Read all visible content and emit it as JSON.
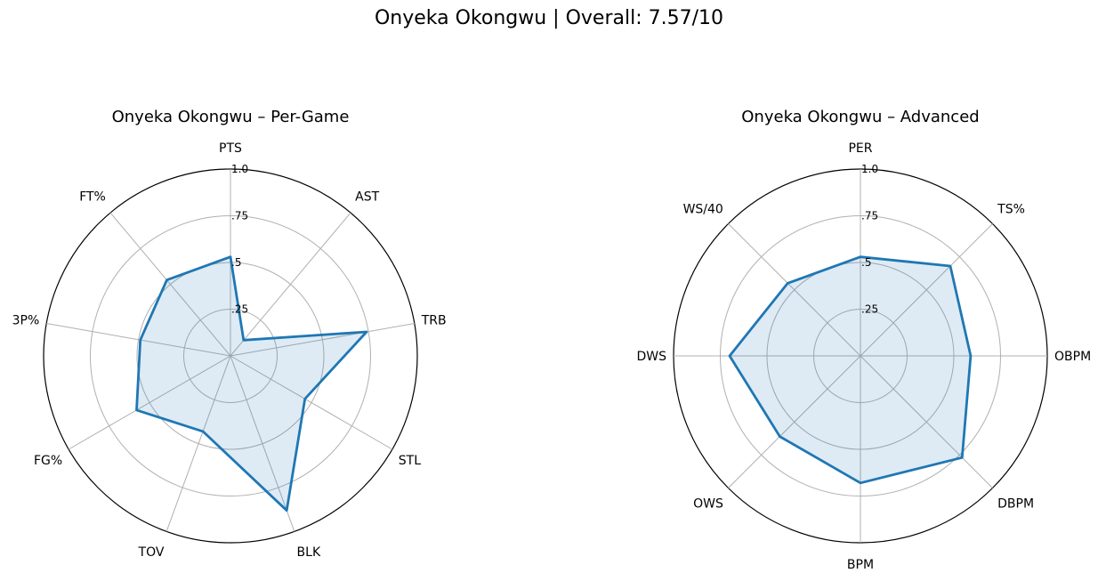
{
  "suptitle": "Onyeka Okongwu | Overall: 7.57/10",
  "chart_data": [
    {
      "type": "radar",
      "title": "Onyeka Okongwu – Per-Game",
      "categories": [
        "PTS",
        "AST",
        "TRB",
        "STL",
        "BLK",
        "TOV",
        "FG%",
        "3P%",
        "FT%"
      ],
      "values": [
        0.53,
        0.11,
        0.74,
        0.46,
        0.88,
        0.43,
        0.58,
        0.49,
        0.53
      ],
      "rlim": [
        0,
        1
      ],
      "rticks": [
        0.25,
        0.5,
        0.75,
        1.0
      ],
      "rtick_labels": [
        ".25",
        ".5",
        ".75",
        "1.0"
      ],
      "grid": true,
      "line_color": "#1f77b4",
      "fill_color": "#1f77b4",
      "fill_alpha": 0.15
    },
    {
      "type": "radar",
      "title": "Onyeka Okongwu – Advanced",
      "categories": [
        "PER",
        "TS%",
        "OBPM",
        "DBPM",
        "BPM",
        "OWS",
        "DWS",
        "WS/40"
      ],
      "values": [
        0.53,
        0.68,
        0.59,
        0.77,
        0.68,
        0.61,
        0.7,
        0.55
      ],
      "rlim": [
        0,
        1
      ],
      "rticks": [
        0.25,
        0.5,
        0.75,
        1.0
      ],
      "rtick_labels": [
        ".25",
        ".5",
        ".75",
        "1.0"
      ],
      "grid": true,
      "line_color": "#1f77b4",
      "fill_color": "#1f77b4",
      "fill_alpha": 0.15
    }
  ]
}
